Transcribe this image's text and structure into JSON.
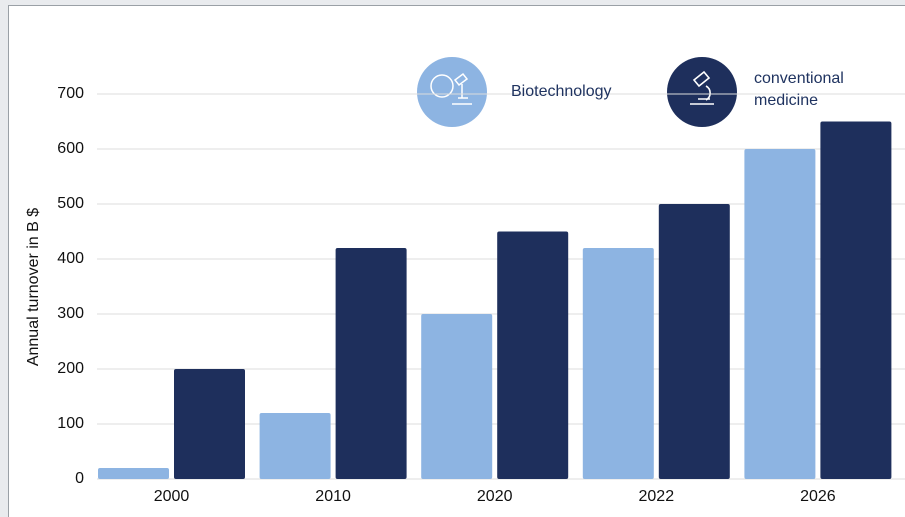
{
  "chart_data": {
    "type": "bar",
    "y_label": "Annual turnover in B $",
    "categories": [
      "2000",
      "2010",
      "2020",
      "2022",
      "2026"
    ],
    "series": [
      {
        "name": "Biotechnology",
        "color": "#8db4e2",
        "values": [
          20,
          120,
          300,
          420,
          600
        ]
      },
      {
        "name": "conventional medicine",
        "color": "#1e2f5c",
        "values": [
          200,
          420,
          450,
          500,
          650
        ]
      }
    ],
    "ylim": [
      0,
      700
    ],
    "yticks": [
      0,
      100,
      200,
      300,
      400,
      500,
      600,
      700
    ],
    "grid": true
  }
}
